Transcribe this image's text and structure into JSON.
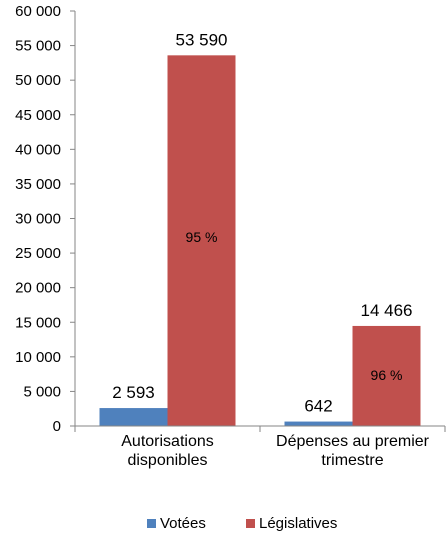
{
  "chart_data": {
    "type": "bar",
    "categories": [
      [
        "Autorisations",
        "disponibles"
      ],
      [
        "Dépenses au premier",
        "trimestre"
      ]
    ],
    "series": [
      {
        "name": "Votées",
        "color": "#4F81BD",
        "values": [
          2593,
          642
        ],
        "labels": [
          "2 593",
          "642"
        ]
      },
      {
        "name": "Législatives",
        "color": "#C0504D",
        "values": [
          53590,
          14466
        ],
        "labels": [
          "53 590",
          "14 466"
        ],
        "inner_labels": [
          "95 %",
          "96 %"
        ]
      }
    ],
    "yticks": [
      "0",
      "5 000",
      "10 000",
      "15 000",
      "20 000",
      "25 000",
      "30 000",
      "35 000",
      "40 000",
      "45 000",
      "50 000",
      "55 000",
      "60 000"
    ],
    "ylim": [
      0,
      60000
    ],
    "grid": false,
    "legend_position": "bottom"
  }
}
